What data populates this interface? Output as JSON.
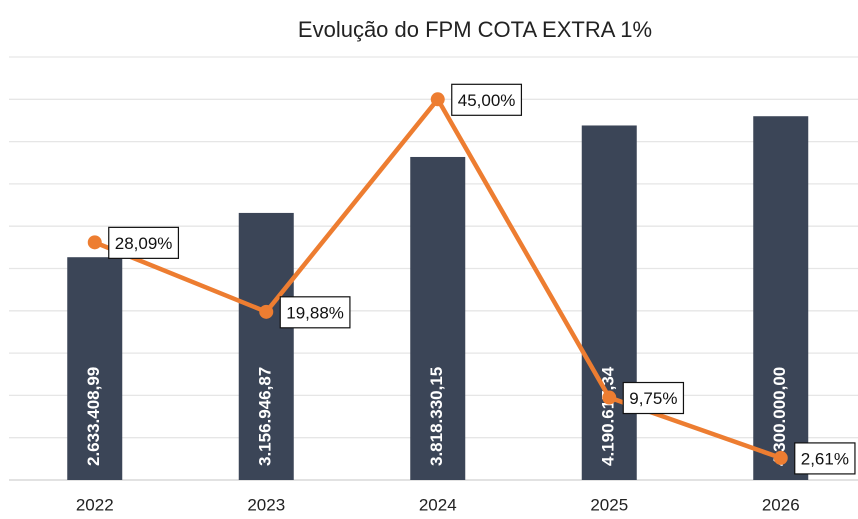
{
  "chart_data": {
    "type": "bar",
    "title": "Evolução do FPM COTA EXTRA 1%",
    "categories": [
      "2022",
      "2023",
      "2024",
      "2025",
      "2026"
    ],
    "series": [
      {
        "type": "bar",
        "color": "#3b4557",
        "values": [
          2633408.99,
          3156946.87,
          3818330.15,
          4190617.34,
          4300000.0
        ],
        "value_labels": [
          "2.633.408,99",
          "3.156.946,87",
          "3.818.330,15",
          "4.190.617,34",
          "4.300.000,00"
        ]
      },
      {
        "type": "line",
        "axis": "y2",
        "color": "#ed7d31",
        "values": [
          28.09,
          19.88,
          45.0,
          9.75,
          2.61
        ],
        "value_labels": [
          "28,09%",
          "19,88%",
          "45,00%",
          "9,75%",
          "2,61%"
        ]
      }
    ],
    "ylim": [
      0,
      5000000
    ],
    "yticks": [
      0,
      500000,
      1000000,
      1500000,
      2000000,
      2500000,
      3000000,
      3500000,
      4000000,
      4500000,
      5000000
    ],
    "y2lim": [
      0,
      50
    ],
    "grid": true
  }
}
